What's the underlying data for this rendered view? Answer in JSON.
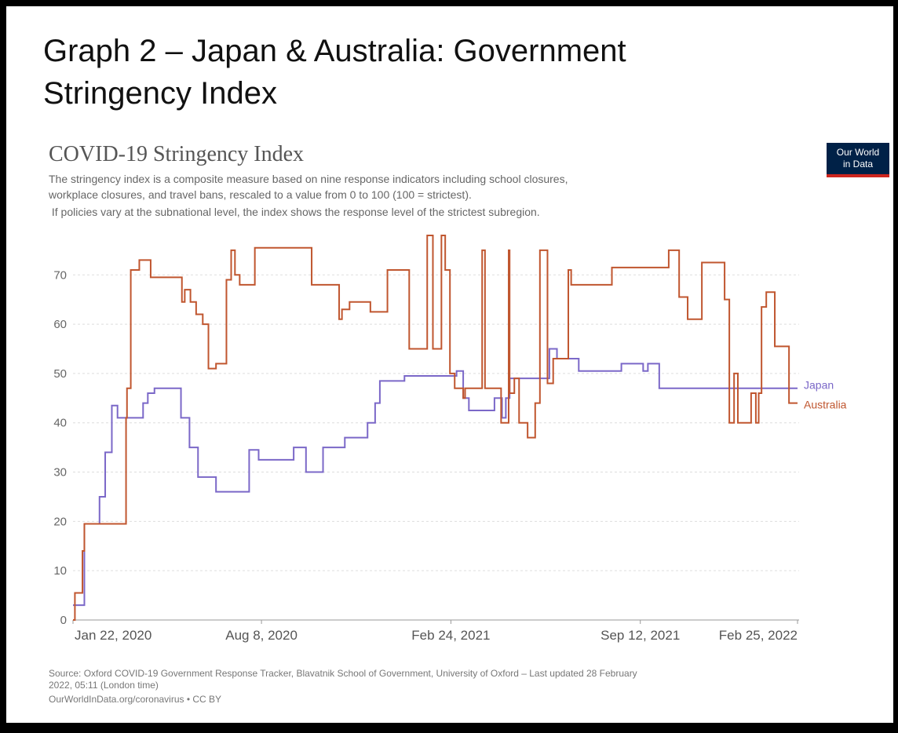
{
  "header": {
    "lines": [
      "Graph 2 – Japan & Australia: Government",
      "Stringency Index"
    ]
  },
  "chart_data": {
    "type": "line",
    "step": true,
    "title": "COVID-19 Stringency Index",
    "subtitle": [
      "The stringency index is a composite measure based on nine response indicators including school closures,",
      "workplace closures, and travel bans, rescaled to a value from 0 to 100 (100 = strictest).",
      " If policies vary at the subnational level, the index shows the response level of the strictest subregion."
    ],
    "logo": [
      "Our World",
      "in Data"
    ],
    "source": [
      "Source: Oxford COVID-19 Government Response Tracker, Blavatnik School of Government, University of Oxford – Last updated 28 February",
      "2022, 05:11 (London time)"
    ],
    "footer": "OurWorldInData.org/coronavirus • CC BY",
    "xlim": [
      "2020-01-22",
      "2022-02-25"
    ],
    "xticks": [
      {
        "value": "2020-01-22",
        "label": "Jan 22, 2020"
      },
      {
        "value": "2020-08-08",
        "label": "Aug 8, 2020"
      },
      {
        "value": "2021-02-24",
        "label": "Feb 24, 2021"
      },
      {
        "value": "2021-09-12",
        "label": "Sep 12, 2021"
      },
      {
        "value": "2022-02-25",
        "label": "Feb 25, 2022"
      }
    ],
    "ylim": [
      0,
      78
    ],
    "yticks": [
      0,
      10,
      20,
      30,
      40,
      50,
      60,
      70
    ],
    "grid": true,
    "series": [
      {
        "name": "Japan",
        "color": "#7b68c8",
        "x": [
          "2020-01-22",
          "2020-02-03",
          "2020-02-19",
          "2020-02-25",
          "2020-03-03",
          "2020-03-09",
          "2020-04-05",
          "2020-04-10",
          "2020-04-17",
          "2020-05-15",
          "2020-05-24",
          "2020-06-02",
          "2020-06-21",
          "2020-07-26",
          "2020-08-05",
          "2020-09-11",
          "2020-09-24",
          "2020-10-12",
          "2020-11-04",
          "2020-11-28",
          "2020-12-06",
          "2020-12-11",
          "2021-01-06",
          "2021-03-02",
          "2021-03-09",
          "2021-03-15",
          "2021-04-11",
          "2021-04-19",
          "2021-04-23",
          "2021-04-27",
          "2021-06-08",
          "2021-06-16",
          "2021-07-09",
          "2021-08-23",
          "2021-09-15",
          "2021-09-20",
          "2021-10-02",
          "2022-02-25"
        ],
        "values": [
          3,
          19.5,
          25,
          34,
          43.5,
          41,
          44,
          46,
          47,
          41,
          35,
          29,
          26,
          34.5,
          32.5,
          35,
          30,
          35,
          37,
          40,
          44,
          48.5,
          49.5,
          50.5,
          45,
          42.5,
          45,
          41,
          45,
          49,
          55,
          53,
          50.5,
          52,
          50.5,
          52,
          47,
          47
        ]
      },
      {
        "name": "Australia",
        "color": "#c0562f",
        "x": [
          "2020-01-22",
          "2020-01-24",
          "2020-02-01",
          "2020-02-03",
          "2020-03-18",
          "2020-03-19",
          "2020-03-23",
          "2020-04-01",
          "2020-04-13",
          "2020-05-16",
          "2020-05-19",
          "2020-05-25",
          "2020-05-31",
          "2020-06-07",
          "2020-06-13",
          "2020-06-21",
          "2020-07-02",
          "2020-07-07",
          "2020-07-11",
          "2020-07-16",
          "2020-08-01",
          "2020-09-30",
          "2020-10-29",
          "2020-11-01",
          "2020-11-09",
          "2020-12-01",
          "2020-12-19",
          "2021-01-11",
          "2021-01-30",
          "2021-02-05",
          "2021-02-14",
          "2021-02-18",
          "2021-02-23",
          "2021-02-28",
          "2021-03-09",
          "2021-03-11",
          "2021-03-29",
          "2021-04-01",
          "2021-04-18",
          "2021-04-26",
          "2021-04-27",
          "2021-05-02",
          "2021-05-07",
          "2021-05-16",
          "2021-05-24",
          "2021-05-29",
          "2021-06-06",
          "2021-06-12",
          "2021-06-28",
          "2021-07-01",
          "2021-08-13",
          "2021-10-12",
          "2021-10-23",
          "2021-11-01",
          "2021-11-16",
          "2021-12-10",
          "2021-12-15",
          "2021-12-20",
          "2021-12-24",
          "2022-01-07",
          "2022-01-12",
          "2022-01-15",
          "2022-01-18",
          "2022-01-23",
          "2022-02-01",
          "2022-02-16",
          "2022-02-25"
        ],
        "values": [
          0,
          5.5,
          14,
          19.5,
          41,
          47,
          71,
          73,
          69.5,
          64.5,
          67,
          64.5,
          62,
          60,
          51,
          52,
          69,
          75,
          70,
          68,
          75.5,
          68,
          61,
          63,
          64.5,
          62.5,
          71,
          55,
          78,
          55,
          78,
          71,
          50,
          47,
          45,
          47,
          75,
          47,
          40,
          75,
          46,
          49,
          40,
          37,
          44,
          75,
          48,
          53,
          71,
          68,
          71.5,
          75,
          65.5,
          61,
          72.5,
          65,
          40,
          50,
          40,
          46,
          40,
          46,
          63.5,
          66.5,
          55.5,
          44,
          44
        ]
      }
    ]
  }
}
